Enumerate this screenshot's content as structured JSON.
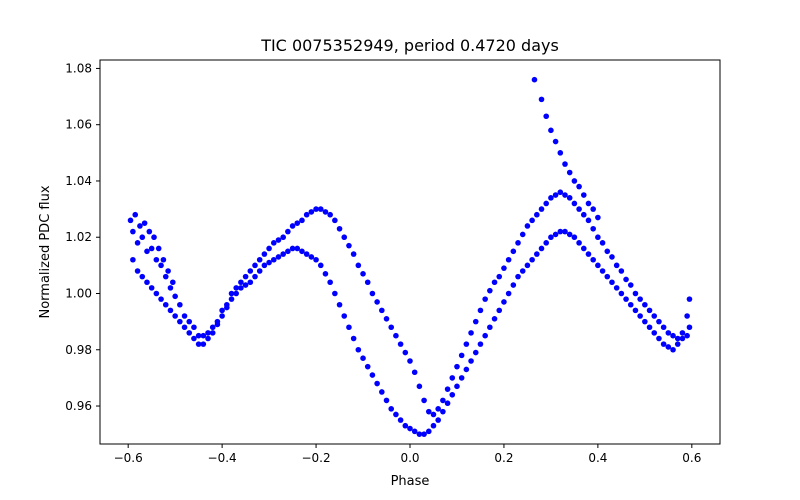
{
  "chart_data": {
    "type": "scatter",
    "title": "TIC 0075352949, period 0.4720 days",
    "xlabel": "Phase",
    "ylabel": "Normalized PDC flux",
    "xlim": [
      -0.66,
      0.66
    ],
    "ylim": [
      0.9465,
      1.083
    ],
    "xticks": [
      -0.6,
      -0.4,
      -0.2,
      0.0,
      0.2,
      0.4,
      0.6
    ],
    "xtick_labels": [
      "−0.6",
      "−0.4",
      "−0.2",
      "0.0",
      "0.2",
      "0.4",
      "0.6"
    ],
    "yticks": [
      0.96,
      0.98,
      1.0,
      1.02,
      1.04,
      1.06,
      1.08
    ],
    "ytick_labels": [
      "0.96",
      "0.98",
      "1.00",
      "1.02",
      "1.04",
      "1.06",
      "1.08"
    ],
    "grid": false,
    "marker_color": "#0000ff",
    "series": [
      {
        "name": "",
        "points": [
          [
            -0.595,
            1.026
          ],
          [
            -0.59,
            1.022
          ],
          [
            -0.585,
            1.028
          ],
          [
            -0.58,
            1.018
          ],
          [
            -0.575,
            1.024
          ],
          [
            -0.57,
            1.02
          ],
          [
            -0.565,
            1.025
          ],
          [
            -0.56,
            1.015
          ],
          [
            -0.555,
            1.022
          ],
          [
            -0.55,
            1.016
          ],
          [
            -0.545,
            1.02
          ],
          [
            -0.54,
            1.012
          ],
          [
            -0.535,
            1.016
          ],
          [
            -0.53,
            1.01
          ],
          [
            -0.525,
            1.012
          ],
          [
            -0.52,
            1.006
          ],
          [
            -0.515,
            1.008
          ],
          [
            -0.51,
            1.002
          ],
          [
            -0.505,
            1.004
          ],
          [
            -0.5,
            0.999
          ],
          [
            -0.49,
            0.996
          ],
          [
            -0.48,
            0.992
          ],
          [
            -0.47,
            0.99
          ],
          [
            -0.46,
            0.988
          ],
          [
            -0.45,
            0.985
          ],
          [
            -0.44,
            0.985
          ],
          [
            -0.43,
            0.986
          ],
          [
            -0.42,
            0.988
          ],
          [
            -0.41,
            0.99
          ],
          [
            -0.4,
            0.994
          ],
          [
            -0.39,
            0.996
          ],
          [
            -0.38,
            1.0
          ],
          [
            -0.37,
            1.002
          ],
          [
            -0.36,
            1.004
          ],
          [
            -0.35,
            1.006
          ],
          [
            -0.34,
            1.008
          ],
          [
            -0.33,
            1.01
          ],
          [
            -0.32,
            1.012
          ],
          [
            -0.31,
            1.014
          ],
          [
            -0.3,
            1.016
          ],
          [
            -0.29,
            1.018
          ],
          [
            -0.28,
            1.019
          ],
          [
            -0.27,
            1.02
          ],
          [
            -0.26,
            1.022
          ],
          [
            -0.25,
            1.024
          ],
          [
            -0.24,
            1.025
          ],
          [
            -0.23,
            1.026
          ],
          [
            -0.22,
            1.028
          ],
          [
            -0.21,
            1.029
          ],
          [
            -0.2,
            1.03
          ],
          [
            -0.19,
            1.03
          ],
          [
            -0.18,
            1.029
          ],
          [
            -0.17,
            1.028
          ],
          [
            -0.16,
            1.026
          ],
          [
            -0.15,
            1.023
          ],
          [
            -0.14,
            1.02
          ],
          [
            -0.13,
            1.017
          ],
          [
            -0.12,
            1.014
          ],
          [
            -0.11,
            1.01
          ],
          [
            -0.1,
            1.007
          ],
          [
            -0.09,
            1.004
          ],
          [
            -0.08,
            1.0
          ],
          [
            -0.07,
            0.997
          ],
          [
            -0.06,
            0.994
          ],
          [
            -0.05,
            0.991
          ],
          [
            -0.04,
            0.988
          ],
          [
            -0.03,
            0.985
          ],
          [
            -0.02,
            0.982
          ],
          [
            -0.01,
            0.979
          ],
          [
            0.0,
            0.976
          ],
          [
            0.01,
            0.972
          ],
          [
            0.02,
            0.967
          ],
          [
            0.03,
            0.962
          ],
          [
            0.04,
            0.958
          ],
          [
            0.05,
            0.957
          ],
          [
            0.06,
            0.959
          ],
          [
            0.07,
            0.962
          ],
          [
            0.08,
            0.966
          ],
          [
            0.09,
            0.97
          ],
          [
            0.1,
            0.974
          ],
          [
            0.11,
            0.978
          ],
          [
            0.12,
            0.982
          ],
          [
            0.13,
            0.986
          ],
          [
            0.14,
            0.99
          ],
          [
            0.15,
            0.994
          ],
          [
            0.16,
            0.998
          ],
          [
            0.17,
            1.001
          ],
          [
            0.18,
            1.004
          ],
          [
            0.19,
            1.006
          ],
          [
            0.2,
            1.009
          ],
          [
            0.21,
            1.012
          ],
          [
            0.22,
            1.015
          ],
          [
            0.23,
            1.018
          ],
          [
            0.24,
            1.021
          ],
          [
            0.25,
            1.024
          ],
          [
            0.26,
            1.026
          ],
          [
            0.27,
            1.028
          ],
          [
            0.28,
            1.03
          ],
          [
            0.29,
            1.032
          ],
          [
            0.3,
            1.034
          ],
          [
            0.31,
            1.035
          ],
          [
            0.32,
            1.036
          ],
          [
            0.33,
            1.035
          ],
          [
            0.34,
            1.034
          ],
          [
            0.35,
            1.032
          ],
          [
            0.36,
            1.03
          ],
          [
            0.37,
            1.028
          ],
          [
            0.38,
            1.026
          ],
          [
            0.39,
            1.023
          ],
          [
            0.4,
            1.02
          ],
          [
            0.41,
            1.018
          ],
          [
            0.42,
            1.015
          ],
          [
            0.43,
            1.013
          ],
          [
            0.44,
            1.01
          ],
          [
            0.45,
            1.008
          ],
          [
            0.46,
            1.005
          ],
          [
            0.47,
            1.003
          ],
          [
            0.48,
            1.0
          ],
          [
            0.49,
            0.998
          ],
          [
            0.5,
            0.996
          ],
          [
            0.51,
            0.994
          ],
          [
            0.52,
            0.992
          ],
          [
            0.53,
            0.99
          ],
          [
            0.54,
            0.988
          ],
          [
            0.55,
            0.986
          ],
          [
            0.56,
            0.985
          ],
          [
            0.57,
            0.984
          ],
          [
            0.58,
            0.984
          ],
          [
            0.59,
            0.985
          ],
          [
            0.595,
            0.988
          ],
          [
            -0.59,
            1.012
          ],
          [
            -0.58,
            1.008
          ],
          [
            -0.57,
            1.006
          ],
          [
            -0.56,
            1.004
          ],
          [
            -0.55,
            1.002
          ],
          [
            -0.54,
            1.0
          ],
          [
            -0.53,
            0.998
          ],
          [
            -0.52,
            0.996
          ],
          [
            -0.51,
            0.994
          ],
          [
            -0.5,
            0.992
          ],
          [
            -0.49,
            0.99
          ],
          [
            -0.48,
            0.988
          ],
          [
            -0.47,
            0.986
          ],
          [
            -0.46,
            0.984
          ],
          [
            -0.45,
            0.982
          ],
          [
            -0.44,
            0.982
          ],
          [
            -0.43,
            0.984
          ],
          [
            -0.42,
            0.986
          ],
          [
            -0.41,
            0.989
          ],
          [
            -0.4,
            0.992
          ],
          [
            -0.39,
            0.995
          ],
          [
            -0.38,
            0.998
          ],
          [
            -0.37,
            1.0
          ],
          [
            -0.36,
            1.002
          ],
          [
            -0.35,
            1.003
          ],
          [
            -0.34,
            1.004
          ],
          [
            -0.33,
            1.006
          ],
          [
            -0.32,
            1.008
          ],
          [
            -0.31,
            1.01
          ],
          [
            -0.3,
            1.011
          ],
          [
            -0.29,
            1.012
          ],
          [
            -0.28,
            1.013
          ],
          [
            -0.27,
            1.014
          ],
          [
            -0.26,
            1.015
          ],
          [
            -0.25,
            1.016
          ],
          [
            -0.24,
            1.016
          ],
          [
            -0.23,
            1.015
          ],
          [
            -0.22,
            1.014
          ],
          [
            -0.21,
            1.013
          ],
          [
            -0.2,
            1.012
          ],
          [
            -0.19,
            1.01
          ],
          [
            -0.18,
            1.007
          ],
          [
            -0.17,
            1.004
          ],
          [
            -0.16,
            1.0
          ],
          [
            -0.15,
            0.996
          ],
          [
            -0.14,
            0.992
          ],
          [
            -0.13,
            0.988
          ],
          [
            -0.12,
            0.984
          ],
          [
            -0.11,
            0.98
          ],
          [
            -0.1,
            0.977
          ],
          [
            -0.09,
            0.974
          ],
          [
            -0.08,
            0.971
          ],
          [
            -0.07,
            0.968
          ],
          [
            -0.06,
            0.965
          ],
          [
            -0.05,
            0.962
          ],
          [
            -0.04,
            0.959
          ],
          [
            -0.03,
            0.957
          ],
          [
            -0.02,
            0.955
          ],
          [
            -0.01,
            0.953
          ],
          [
            0.0,
            0.952
          ],
          [
            0.01,
            0.951
          ],
          [
            0.02,
            0.95
          ],
          [
            0.03,
            0.95
          ],
          [
            0.04,
            0.951
          ],
          [
            0.05,
            0.953
          ],
          [
            0.06,
            0.955
          ],
          [
            0.07,
            0.958
          ],
          [
            0.08,
            0.961
          ],
          [
            0.09,
            0.964
          ],
          [
            0.1,
            0.967
          ],
          [
            0.11,
            0.97
          ],
          [
            0.12,
            0.973
          ],
          [
            0.13,
            0.976
          ],
          [
            0.14,
            0.979
          ],
          [
            0.15,
            0.982
          ],
          [
            0.16,
            0.985
          ],
          [
            0.17,
            0.988
          ],
          [
            0.18,
            0.991
          ],
          [
            0.19,
            0.994
          ],
          [
            0.2,
            0.997
          ],
          [
            0.21,
            1.0
          ],
          [
            0.22,
            1.003
          ],
          [
            0.23,
            1.006
          ],
          [
            0.24,
            1.008
          ],
          [
            0.25,
            1.01
          ],
          [
            0.26,
            1.012
          ],
          [
            0.27,
            1.014
          ],
          [
            0.28,
            1.016
          ],
          [
            0.29,
            1.018
          ],
          [
            0.3,
            1.02
          ],
          [
            0.31,
            1.021
          ],
          [
            0.32,
            1.022
          ],
          [
            0.33,
            1.022
          ],
          [
            0.34,
            1.021
          ],
          [
            0.35,
            1.02
          ],
          [
            0.36,
            1.018
          ],
          [
            0.37,
            1.016
          ],
          [
            0.38,
            1.014
          ],
          [
            0.39,
            1.012
          ],
          [
            0.4,
            1.01
          ],
          [
            0.41,
            1.008
          ],
          [
            0.42,
            1.006
          ],
          [
            0.43,
            1.004
          ],
          [
            0.44,
            1.002
          ],
          [
            0.45,
            1.0
          ],
          [
            0.46,
            0.998
          ],
          [
            0.47,
            0.996
          ],
          [
            0.48,
            0.994
          ],
          [
            0.49,
            0.992
          ],
          [
            0.5,
            0.99
          ],
          [
            0.51,
            0.988
          ],
          [
            0.52,
            0.986
          ],
          [
            0.53,
            0.984
          ],
          [
            0.54,
            0.982
          ],
          [
            0.55,
            0.981
          ],
          [
            0.56,
            0.98
          ],
          [
            0.57,
            0.982
          ],
          [
            0.58,
            0.986
          ],
          [
            0.59,
            0.992
          ],
          [
            0.595,
            0.998
          ],
          [
            0.265,
            1.076
          ],
          [
            0.28,
            1.069
          ],
          [
            0.29,
            1.063
          ],
          [
            0.3,
            1.058
          ],
          [
            0.31,
            1.054
          ],
          [
            0.32,
            1.05
          ],
          [
            0.33,
            1.046
          ],
          [
            0.34,
            1.043
          ],
          [
            0.35,
            1.04
          ],
          [
            0.36,
            1.038
          ],
          [
            0.37,
            1.035
          ],
          [
            0.38,
            1.032
          ],
          [
            0.39,
            1.03
          ],
          [
            0.4,
            1.027
          ]
        ]
      }
    ]
  }
}
